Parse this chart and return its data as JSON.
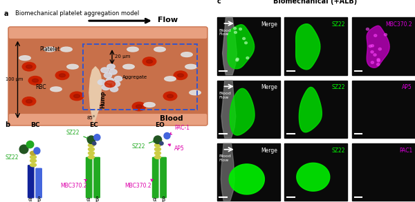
{
  "fig_width": 6.0,
  "fig_height": 2.93,
  "dpi": 100,
  "bg_color": "#ffffff",
  "panel_a": {
    "label": "a",
    "title": "Biomechanical platelet aggregation model",
    "vessel_color": "#c8704a",
    "vessel_wall_color": "#e8a080",
    "flow_text": "Flow",
    "hump_color": "#e8c8a8",
    "rbc_color": "#cc2200",
    "rbc_dark": "#991100",
    "platelet_color": "#e0e0e0",
    "agg_color": "#d8dde8",
    "dashed_rect_color": "#3355cc",
    "blood_text_color": "#000000"
  },
  "panel_b": {
    "label": "b",
    "conformations": [
      "BC",
      "EC",
      "EO"
    ],
    "green_color": "#22aa22",
    "darkgreen_color": "#225522",
    "magenta_color": "#dd00aa",
    "yellow_color": "#cccc44",
    "blue_color": "#4466dd",
    "darkblue_color": "#112299",
    "teal_color": "#336699"
  },
  "panel_c": {
    "label": "c",
    "title": "Biomechanical (+ALB)",
    "rows": [
      {
        "labels": [
          "Merge",
          "SZ22",
          "MBC370.2"
        ],
        "label_colors": [
          "#ffffff",
          "#00ff00",
          "#dd00dd"
        ]
      },
      {
        "labels": [
          "Merge",
          "SZ22",
          "AP5"
        ],
        "label_colors": [
          "#ffffff",
          "#00ff00",
          "#dd00dd"
        ]
      },
      {
        "labels": [
          "Merge",
          "SZ22",
          "PAC1"
        ],
        "label_colors": [
          "#ffffff",
          "#00ff00",
          "#dd00dd"
        ]
      }
    ]
  }
}
